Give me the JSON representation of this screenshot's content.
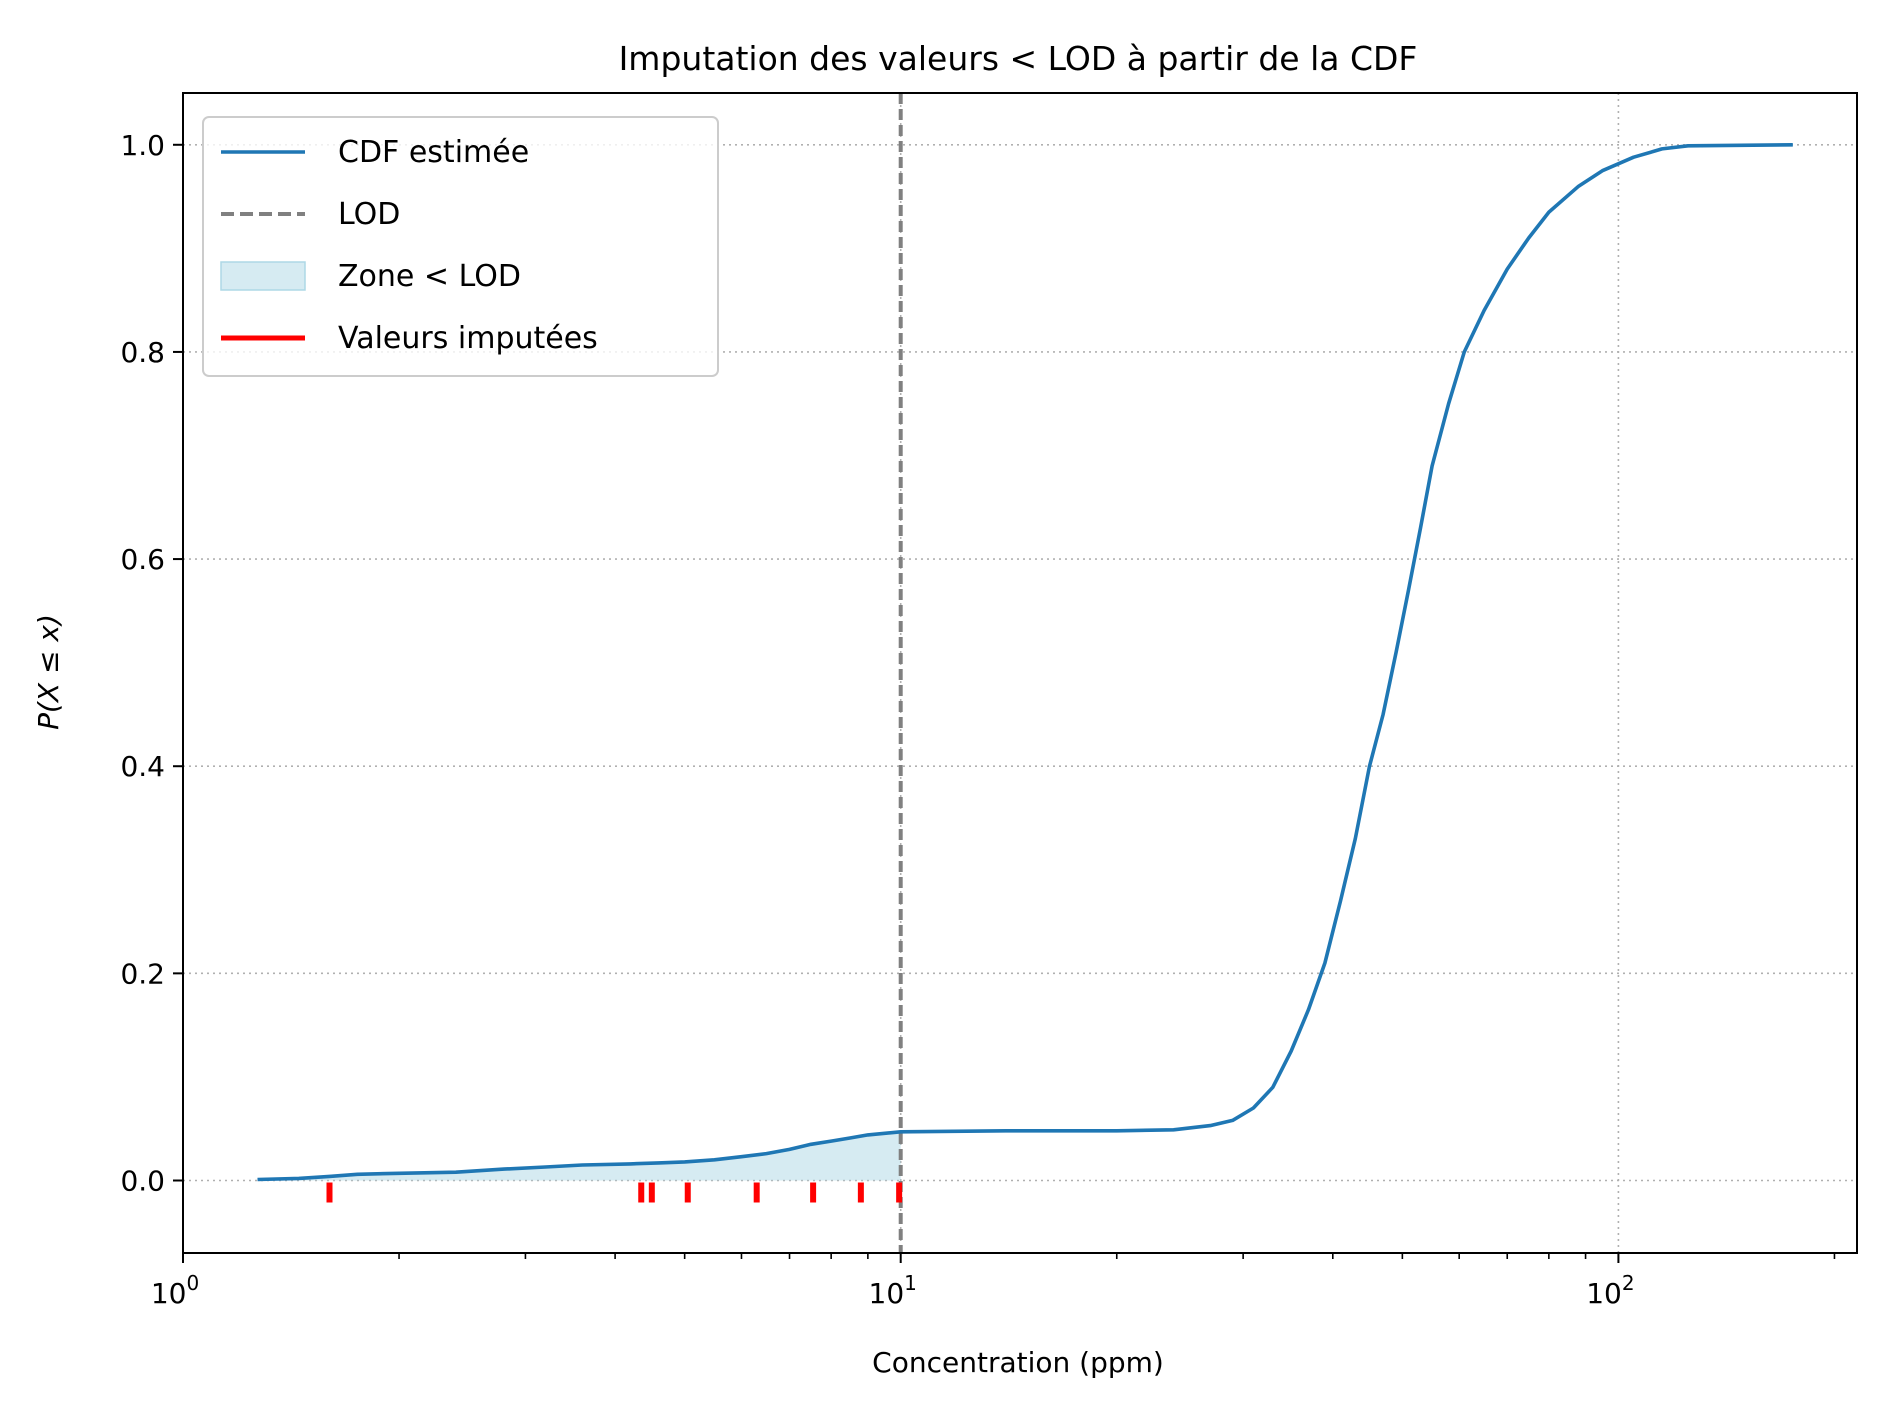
{
  "chart_data": {
    "type": "line",
    "title": "Imputation des valeurs < LOD à partir de la CDF",
    "xlabel": "Concentration (ppm)",
    "ylabel": "P(X ≤ x)",
    "xscale": "log",
    "xlim": [
      1.0,
      215.0
    ],
    "ylim": [
      -0.07,
      1.05
    ],
    "grid": true,
    "legend_position": "upper-left",
    "x_ticks": [
      {
        "value": 1,
        "base": "10",
        "exp": "0"
      },
      {
        "value": 10,
        "base": "10",
        "exp": "1"
      },
      {
        "value": 100,
        "base": "10",
        "exp": "2"
      }
    ],
    "x_minor_ticks": [
      2,
      3,
      4,
      5,
      6,
      7,
      8,
      9,
      20,
      30,
      40,
      50,
      60,
      70,
      80,
      90,
      200
    ],
    "y_ticks": [
      {
        "value": 0.0,
        "label": "0.0"
      },
      {
        "value": 0.2,
        "label": "0.2"
      },
      {
        "value": 0.4,
        "label": "0.4"
      },
      {
        "value": 0.6,
        "label": "0.6"
      },
      {
        "value": 0.8,
        "label": "0.8"
      },
      {
        "value": 1.0,
        "label": "1.0"
      }
    ],
    "lod": 10,
    "legend": [
      {
        "label": "CDF estimée",
        "kind": "line",
        "color": "#1f77b4"
      },
      {
        "label": "LOD",
        "kind": "dashed",
        "color": "#808080"
      },
      {
        "label": "Zone < LOD",
        "kind": "patch",
        "color": "#add8e6"
      },
      {
        "label": "Valeurs imputées",
        "kind": "line",
        "color": "#ff0000"
      }
    ],
    "series": [
      {
        "name": "CDF estimée",
        "color": "#1f77b4",
        "points": [
          [
            1.27,
            0.001
          ],
          [
            1.45,
            0.002
          ],
          [
            1.6,
            0.004
          ],
          [
            1.75,
            0.006
          ],
          [
            2.0,
            0.007
          ],
          [
            2.4,
            0.008
          ],
          [
            2.8,
            0.011
          ],
          [
            3.2,
            0.013
          ],
          [
            3.6,
            0.015
          ],
          [
            4.2,
            0.016
          ],
          [
            4.6,
            0.017
          ],
          [
            5.0,
            0.018
          ],
          [
            5.5,
            0.02
          ],
          [
            6.0,
            0.023
          ],
          [
            6.5,
            0.026
          ],
          [
            7.0,
            0.03
          ],
          [
            7.5,
            0.035
          ],
          [
            8.0,
            0.038
          ],
          [
            8.5,
            0.041
          ],
          [
            9.0,
            0.044
          ],
          [
            10.0,
            0.047
          ],
          [
            14.0,
            0.048
          ],
          [
            20.0,
            0.048
          ],
          [
            24.0,
            0.049
          ],
          [
            27.0,
            0.053
          ],
          [
            29.0,
            0.058
          ],
          [
            31.0,
            0.07
          ],
          [
            33.0,
            0.09
          ],
          [
            35.0,
            0.125
          ],
          [
            37.0,
            0.165
          ],
          [
            39.0,
            0.21
          ],
          [
            41.0,
            0.27
          ],
          [
            43.0,
            0.33
          ],
          [
            45.0,
            0.4
          ],
          [
            47.0,
            0.45
          ],
          [
            49.0,
            0.51
          ],
          [
            51.0,
            0.57
          ],
          [
            53.0,
            0.63
          ],
          [
            55.0,
            0.69
          ],
          [
            58.0,
            0.75
          ],
          [
            61.0,
            0.8
          ],
          [
            65.0,
            0.84
          ],
          [
            70.0,
            0.88
          ],
          [
            75.0,
            0.91
          ],
          [
            80.0,
            0.935
          ],
          [
            88.0,
            0.96
          ],
          [
            95.0,
            0.975
          ],
          [
            105.0,
            0.988
          ],
          [
            115.0,
            0.996
          ],
          [
            125.0,
            0.999
          ],
          [
            175.0,
            1.0
          ]
        ]
      }
    ],
    "imputed_values": [
      1.6,
      4.35,
      4.5,
      5.05,
      6.3,
      7.55,
      8.8,
      9.95
    ]
  }
}
